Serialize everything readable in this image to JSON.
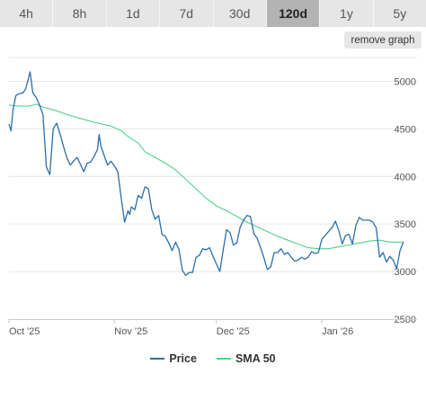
{
  "tabs": [
    {
      "label": "4h",
      "active": false
    },
    {
      "label": "8h",
      "active": false
    },
    {
      "label": "1d",
      "active": false
    },
    {
      "label": "7d",
      "active": false
    },
    {
      "label": "30d",
      "active": false
    },
    {
      "label": "120d",
      "active": true
    },
    {
      "label": "1y",
      "active": false
    },
    {
      "label": "5y",
      "active": false
    }
  ],
  "remove_graph_label": "remove graph",
  "colors": {
    "price": "#2a6fa8",
    "sma": "#4fd08a",
    "grid": "#e6e6e6",
    "axis": "#cccccc"
  },
  "chart_data": {
    "type": "line",
    "title": "",
    "xlabel": "",
    "ylabel": "",
    "x_tick_labels": [
      "Oct '25",
      "Nov '25",
      "Dec '25",
      "Jan '26"
    ],
    "x_tick_days": [
      0,
      31,
      61,
      92
    ],
    "y_ticks": [
      2500,
      3000,
      3500,
      4000,
      4500,
      5000
    ],
    "ylim": [
      2500,
      5250
    ],
    "xlim": [
      0,
      120
    ],
    "grid": true,
    "legend": "bottom-center",
    "series": [
      {
        "name": "Price",
        "points": [
          [
            0,
            4550
          ],
          [
            0.6,
            4480
          ],
          [
            1.2,
            4700
          ],
          [
            2,
            4850
          ],
          [
            3,
            4870
          ],
          [
            4.2,
            4880
          ],
          [
            5,
            4930
          ],
          [
            6.2,
            5100
          ],
          [
            7,
            4880
          ],
          [
            8,
            4830
          ],
          [
            9,
            4750
          ],
          [
            10,
            4650
          ],
          [
            11,
            4100
          ],
          [
            12,
            4020
          ],
          [
            13,
            4500
          ],
          [
            14,
            4560
          ],
          [
            15,
            4450
          ],
          [
            16,
            4320
          ],
          [
            17,
            4200
          ],
          [
            18,
            4120
          ],
          [
            19,
            4160
          ],
          [
            20,
            4200
          ],
          [
            21,
            4130
          ],
          [
            22,
            4050
          ],
          [
            23,
            4140
          ],
          [
            24,
            4150
          ],
          [
            25,
            4210
          ],
          [
            26,
            4280
          ],
          [
            26.5,
            4440
          ],
          [
            27,
            4320
          ],
          [
            28,
            4220
          ],
          [
            29,
            4120
          ],
          [
            30,
            4160
          ],
          [
            31,
            4110
          ],
          [
            32,
            4050
          ],
          [
            33,
            3770
          ],
          [
            34,
            3520
          ],
          [
            35,
            3640
          ],
          [
            35.5,
            3600
          ],
          [
            36,
            3680
          ],
          [
            37,
            3650
          ],
          [
            38,
            3800
          ],
          [
            39,
            3770
          ],
          [
            40,
            3890
          ],
          [
            41,
            3870
          ],
          [
            42,
            3650
          ],
          [
            43,
            3550
          ],
          [
            44,
            3590
          ],
          [
            45,
            3390
          ],
          [
            46,
            3370
          ],
          [
            47,
            3300
          ],
          [
            48,
            3220
          ],
          [
            49,
            3310
          ],
          [
            50,
            3230
          ],
          [
            51,
            3010
          ],
          [
            52,
            2960
          ],
          [
            53,
            2990
          ],
          [
            54,
            2990
          ],
          [
            55,
            3150
          ],
          [
            56,
            3170
          ],
          [
            57,
            3240
          ],
          [
            58,
            3230
          ],
          [
            59,
            3250
          ],
          [
            60,
            3160
          ],
          [
            61,
            3080
          ],
          [
            62,
            3000
          ],
          [
            63,
            3230
          ],
          [
            64,
            3440
          ],
          [
            65,
            3410
          ],
          [
            66,
            3280
          ],
          [
            67,
            3300
          ],
          [
            68,
            3470
          ],
          [
            69,
            3540
          ],
          [
            70,
            3590
          ],
          [
            71,
            3580
          ],
          [
            72,
            3400
          ],
          [
            73,
            3350
          ],
          [
            74,
            3250
          ],
          [
            75,
            3140
          ],
          [
            76,
            3020
          ],
          [
            77,
            3050
          ],
          [
            78,
            3200
          ],
          [
            79,
            3200
          ],
          [
            80,
            3240
          ],
          [
            81,
            3180
          ],
          [
            82,
            3200
          ],
          [
            83,
            3150
          ],
          [
            84,
            3110
          ],
          [
            85,
            3120
          ],
          [
            86,
            3150
          ],
          [
            87,
            3130
          ],
          [
            88,
            3150
          ],
          [
            89,
            3210
          ],
          [
            90,
            3190
          ],
          [
            91,
            3200
          ],
          [
            92,
            3340
          ],
          [
            93,
            3380
          ],
          [
            94,
            3420
          ],
          [
            95,
            3460
          ],
          [
            96,
            3530
          ],
          [
            97,
            3430
          ],
          [
            98,
            3290
          ],
          [
            99,
            3380
          ],
          [
            100,
            3390
          ],
          [
            101,
            3290
          ],
          [
            102,
            3480
          ],
          [
            103,
            3570
          ],
          [
            104,
            3540
          ],
          [
            105,
            3540
          ],
          [
            106,
            3540
          ],
          [
            107,
            3520
          ],
          [
            108,
            3460
          ],
          [
            109,
            3150
          ],
          [
            110,
            3200
          ],
          [
            111,
            3100
          ],
          [
            112,
            3160
          ],
          [
            113,
            3120
          ],
          [
            114,
            3030
          ],
          [
            115,
            3220
          ],
          [
            116,
            3310
          ]
        ]
      },
      {
        "name": "SMA 50",
        "points": [
          [
            0,
            4750
          ],
          [
            3,
            4740
          ],
          [
            6,
            4740
          ],
          [
            8,
            4760
          ],
          [
            10,
            4730
          ],
          [
            14,
            4690
          ],
          [
            18,
            4640
          ],
          [
            22,
            4600
          ],
          [
            26,
            4560
          ],
          [
            30,
            4530
          ],
          [
            33,
            4480
          ],
          [
            35,
            4420
          ],
          [
            38,
            4350
          ],
          [
            40,
            4260
          ],
          [
            43,
            4200
          ],
          [
            46,
            4140
          ],
          [
            49,
            4070
          ],
          [
            52,
            3970
          ],
          [
            55,
            3870
          ],
          [
            58,
            3770
          ],
          [
            61,
            3690
          ],
          [
            64,
            3640
          ],
          [
            67,
            3580
          ],
          [
            70,
            3520
          ],
          [
            73,
            3470
          ],
          [
            76,
            3420
          ],
          [
            79,
            3370
          ],
          [
            82,
            3330
          ],
          [
            85,
            3290
          ],
          [
            88,
            3250
          ],
          [
            91,
            3240
          ],
          [
            94,
            3240
          ],
          [
            97,
            3260
          ],
          [
            100,
            3280
          ],
          [
            103,
            3300
          ],
          [
            106,
            3320
          ],
          [
            109,
            3330
          ],
          [
            112,
            3310
          ],
          [
            115,
            3310
          ],
          [
            116,
            3310
          ]
        ]
      }
    ]
  }
}
